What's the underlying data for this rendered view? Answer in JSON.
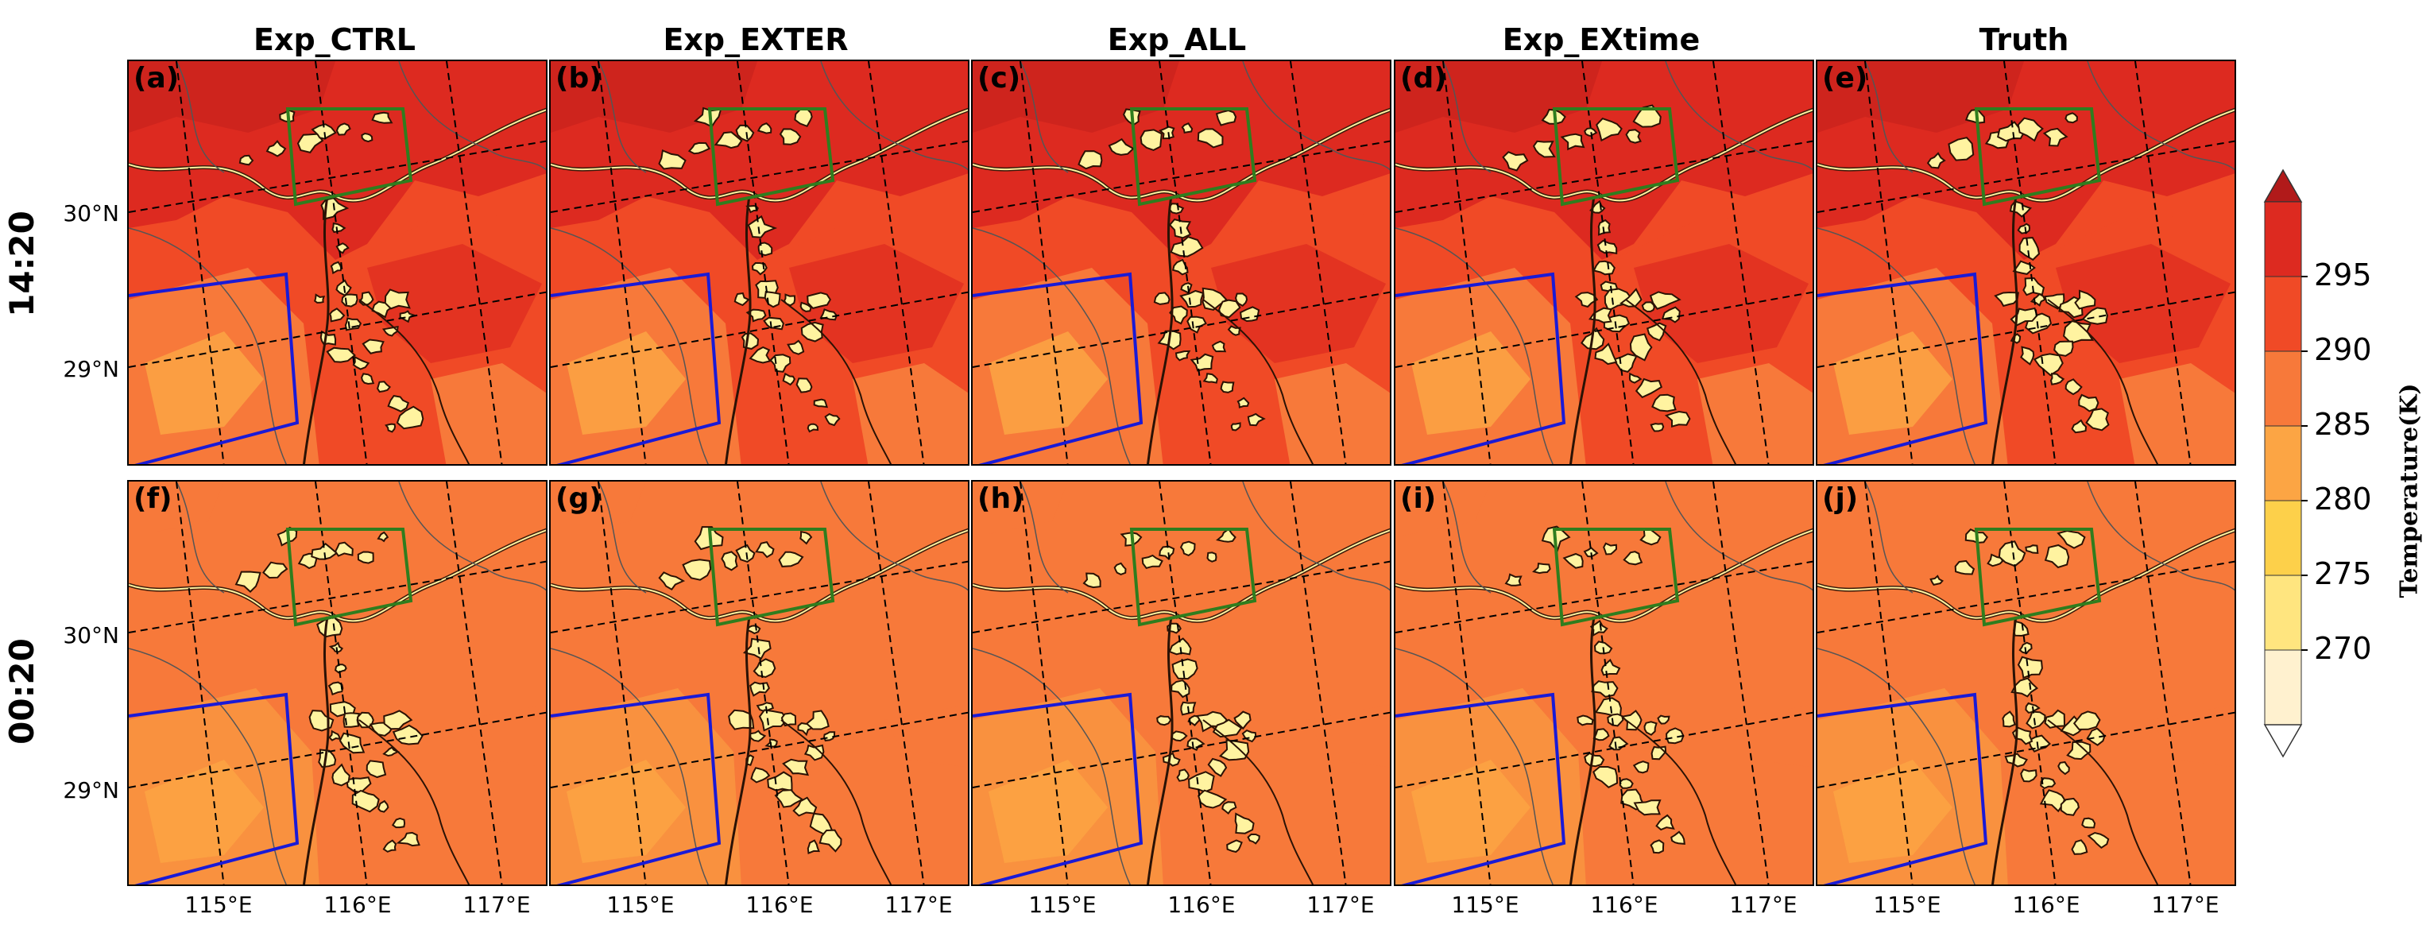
{
  "figure": {
    "columns": [
      "Exp_CTRL",
      "Exp_EXTER",
      "Exp_ALL",
      "Exp_EXtime",
      "Truth"
    ],
    "rows": [
      "14:20",
      "00:20"
    ],
    "panel_labels": [
      "(a)",
      "(b)",
      "(c)",
      "(d)",
      "(e)",
      "(f)",
      "(g)",
      "(h)",
      "(i)",
      "(j)"
    ],
    "lat_labels": [
      "30°N",
      "29°N"
    ],
    "lon_labels": [
      "115°E",
      "116°E",
      "117°E"
    ]
  },
  "colors": {
    "c270": "#fff1cf",
    "c275": "#ffe57f",
    "c280": "#fdd04a",
    "c285": "#fca544",
    "c290": "#f7793a",
    "c295": "#f04a26",
    "c300": "#dd2a20",
    "c_top": "#b11a1a",
    "water": "#fff3a0",
    "green_box": "#2f7d1e",
    "blue_box": "#1a1ad6"
  },
  "chart_data": {
    "type": "heatmap",
    "title": "",
    "xlabel": "",
    "ylabel": "",
    "x_ticks": [
      "115°E",
      "116°E",
      "117°E"
    ],
    "y_ticks": [
      "30°N",
      "29°N"
    ],
    "colorbar": {
      "label": "Temperature(K)",
      "levels": [
        265,
        270,
        275,
        280,
        285,
        290,
        295,
        300
      ],
      "tick_labels": [
        "270",
        "275",
        "280",
        "285",
        "290",
        "295"
      ],
      "extend": "both"
    },
    "rows": [
      {
        "name": "14:20",
        "panels": [
          "(a) Exp_CTRL",
          "(b) Exp_EXTER",
          "(c) Exp_ALL",
          "(d) Exp_EXtime",
          "(e) Truth"
        ],
        "dominant_temperature_K": 292,
        "north_temperature_K": 296,
        "southwest_temperature_K": 288
      },
      {
        "name": "00:20",
        "panels": [
          "(f) Exp_CTRL",
          "(g) Exp_EXTER",
          "(h) Exp_ALL",
          "(i) Exp_EXtime",
          "(j) Truth"
        ],
        "dominant_temperature_K": 288,
        "north_temperature_K": 288,
        "southwest_temperature_K": 286
      }
    ],
    "annotations": [
      "green box: region near 115.6–116.3°E, 30.0–30.7°N",
      "blue box: region near 114.3–115.5°E, 28.5–29.4°N"
    ]
  }
}
